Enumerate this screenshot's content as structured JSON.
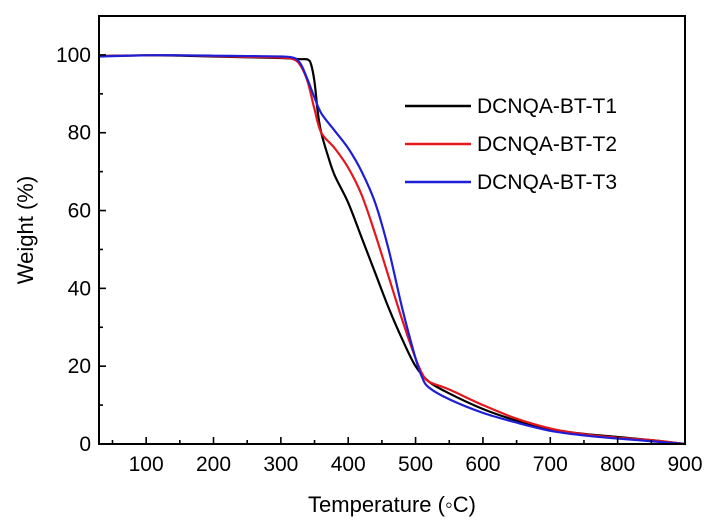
{
  "chart_data": {
    "type": "line",
    "title": "",
    "xlabel": "Temperature (◦C)",
    "ylabel": "Weight (%)",
    "xlim": [
      30,
      900
    ],
    "ylim": [
      0,
      110
    ],
    "x_ticks": [
      100,
      200,
      300,
      400,
      500,
      600,
      700,
      800,
      900
    ],
    "y_ticks": [
      0,
      20,
      40,
      60,
      80,
      100
    ],
    "grid": false,
    "legend_position": "top-right",
    "series": [
      {
        "name": "DCNQA-BT-T1",
        "color": "#000000",
        "points": [
          [
            30,
            99.7
          ],
          [
            100,
            99.9
          ],
          [
            150,
            99.8
          ],
          [
            200,
            99.6
          ],
          [
            250,
            99.4
          ],
          [
            300,
            99.2
          ],
          [
            320,
            99.0
          ],
          [
            330,
            98.9
          ],
          [
            340,
            98.8
          ],
          [
            345,
            97.5
          ],
          [
            350,
            93.0
          ],
          [
            355,
            85.0
          ],
          [
            360,
            80.0
          ],
          [
            370,
            74.0
          ],
          [
            380,
            69.0
          ],
          [
            400,
            62.0
          ],
          [
            420,
            53.0
          ],
          [
            440,
            44.0
          ],
          [
            460,
            35.0
          ],
          [
            480,
            27.0
          ],
          [
            500,
            20.0
          ],
          [
            520,
            16.0
          ],
          [
            550,
            13.0
          ],
          [
            600,
            9.0
          ],
          [
            650,
            6.0
          ],
          [
            700,
            3.8
          ],
          [
            750,
            2.6
          ],
          [
            800,
            1.8
          ],
          [
            850,
            1.0
          ],
          [
            900,
            0.0
          ]
        ]
      },
      {
        "name": "DCNQA-BT-T2",
        "color": "#e5161c",
        "points": [
          [
            30,
            99.7
          ],
          [
            100,
            99.9
          ],
          [
            150,
            99.9
          ],
          [
            200,
            99.7
          ],
          [
            250,
            99.5
          ],
          [
            300,
            99.3
          ],
          [
            320,
            98.8
          ],
          [
            330,
            97.0
          ],
          [
            340,
            93.0
          ],
          [
            350,
            86.0
          ],
          [
            360,
            80.0
          ],
          [
            380,
            76.0
          ],
          [
            400,
            71.0
          ],
          [
            420,
            64.0
          ],
          [
            440,
            54.0
          ],
          [
            460,
            43.0
          ],
          [
            480,
            32.0
          ],
          [
            500,
            22.0
          ],
          [
            510,
            18.0
          ],
          [
            520,
            16.0
          ],
          [
            550,
            14.0
          ],
          [
            600,
            10.0
          ],
          [
            650,
            6.5
          ],
          [
            700,
            4.0
          ],
          [
            750,
            2.5
          ],
          [
            800,
            1.6
          ],
          [
            850,
            1.0
          ],
          [
            900,
            0.0
          ]
        ]
      },
      {
        "name": "DCNQA-BT-T3",
        "color": "#1e1ed6",
        "points": [
          [
            30,
            99.6
          ],
          [
            100,
            99.9
          ],
          [
            150,
            99.9
          ],
          [
            200,
            99.8
          ],
          [
            250,
            99.7
          ],
          [
            300,
            99.6
          ],
          [
            320,
            99.2
          ],
          [
            330,
            97.5
          ],
          [
            340,
            93.5
          ],
          [
            350,
            89.0
          ],
          [
            360,
            85.0
          ],
          [
            380,
            80.5
          ],
          [
            400,
            76.0
          ],
          [
            420,
            70.0
          ],
          [
            440,
            62.0
          ],
          [
            460,
            50.0
          ],
          [
            480,
            35.0
          ],
          [
            500,
            22.0
          ],
          [
            510,
            17.0
          ],
          [
            520,
            14.5
          ],
          [
            550,
            11.5
          ],
          [
            600,
            8.0
          ],
          [
            650,
            5.5
          ],
          [
            700,
            3.4
          ],
          [
            750,
            2.2
          ],
          [
            800,
            1.4
          ],
          [
            850,
            0.7
          ],
          [
            900,
            0.0
          ]
        ]
      }
    ]
  }
}
